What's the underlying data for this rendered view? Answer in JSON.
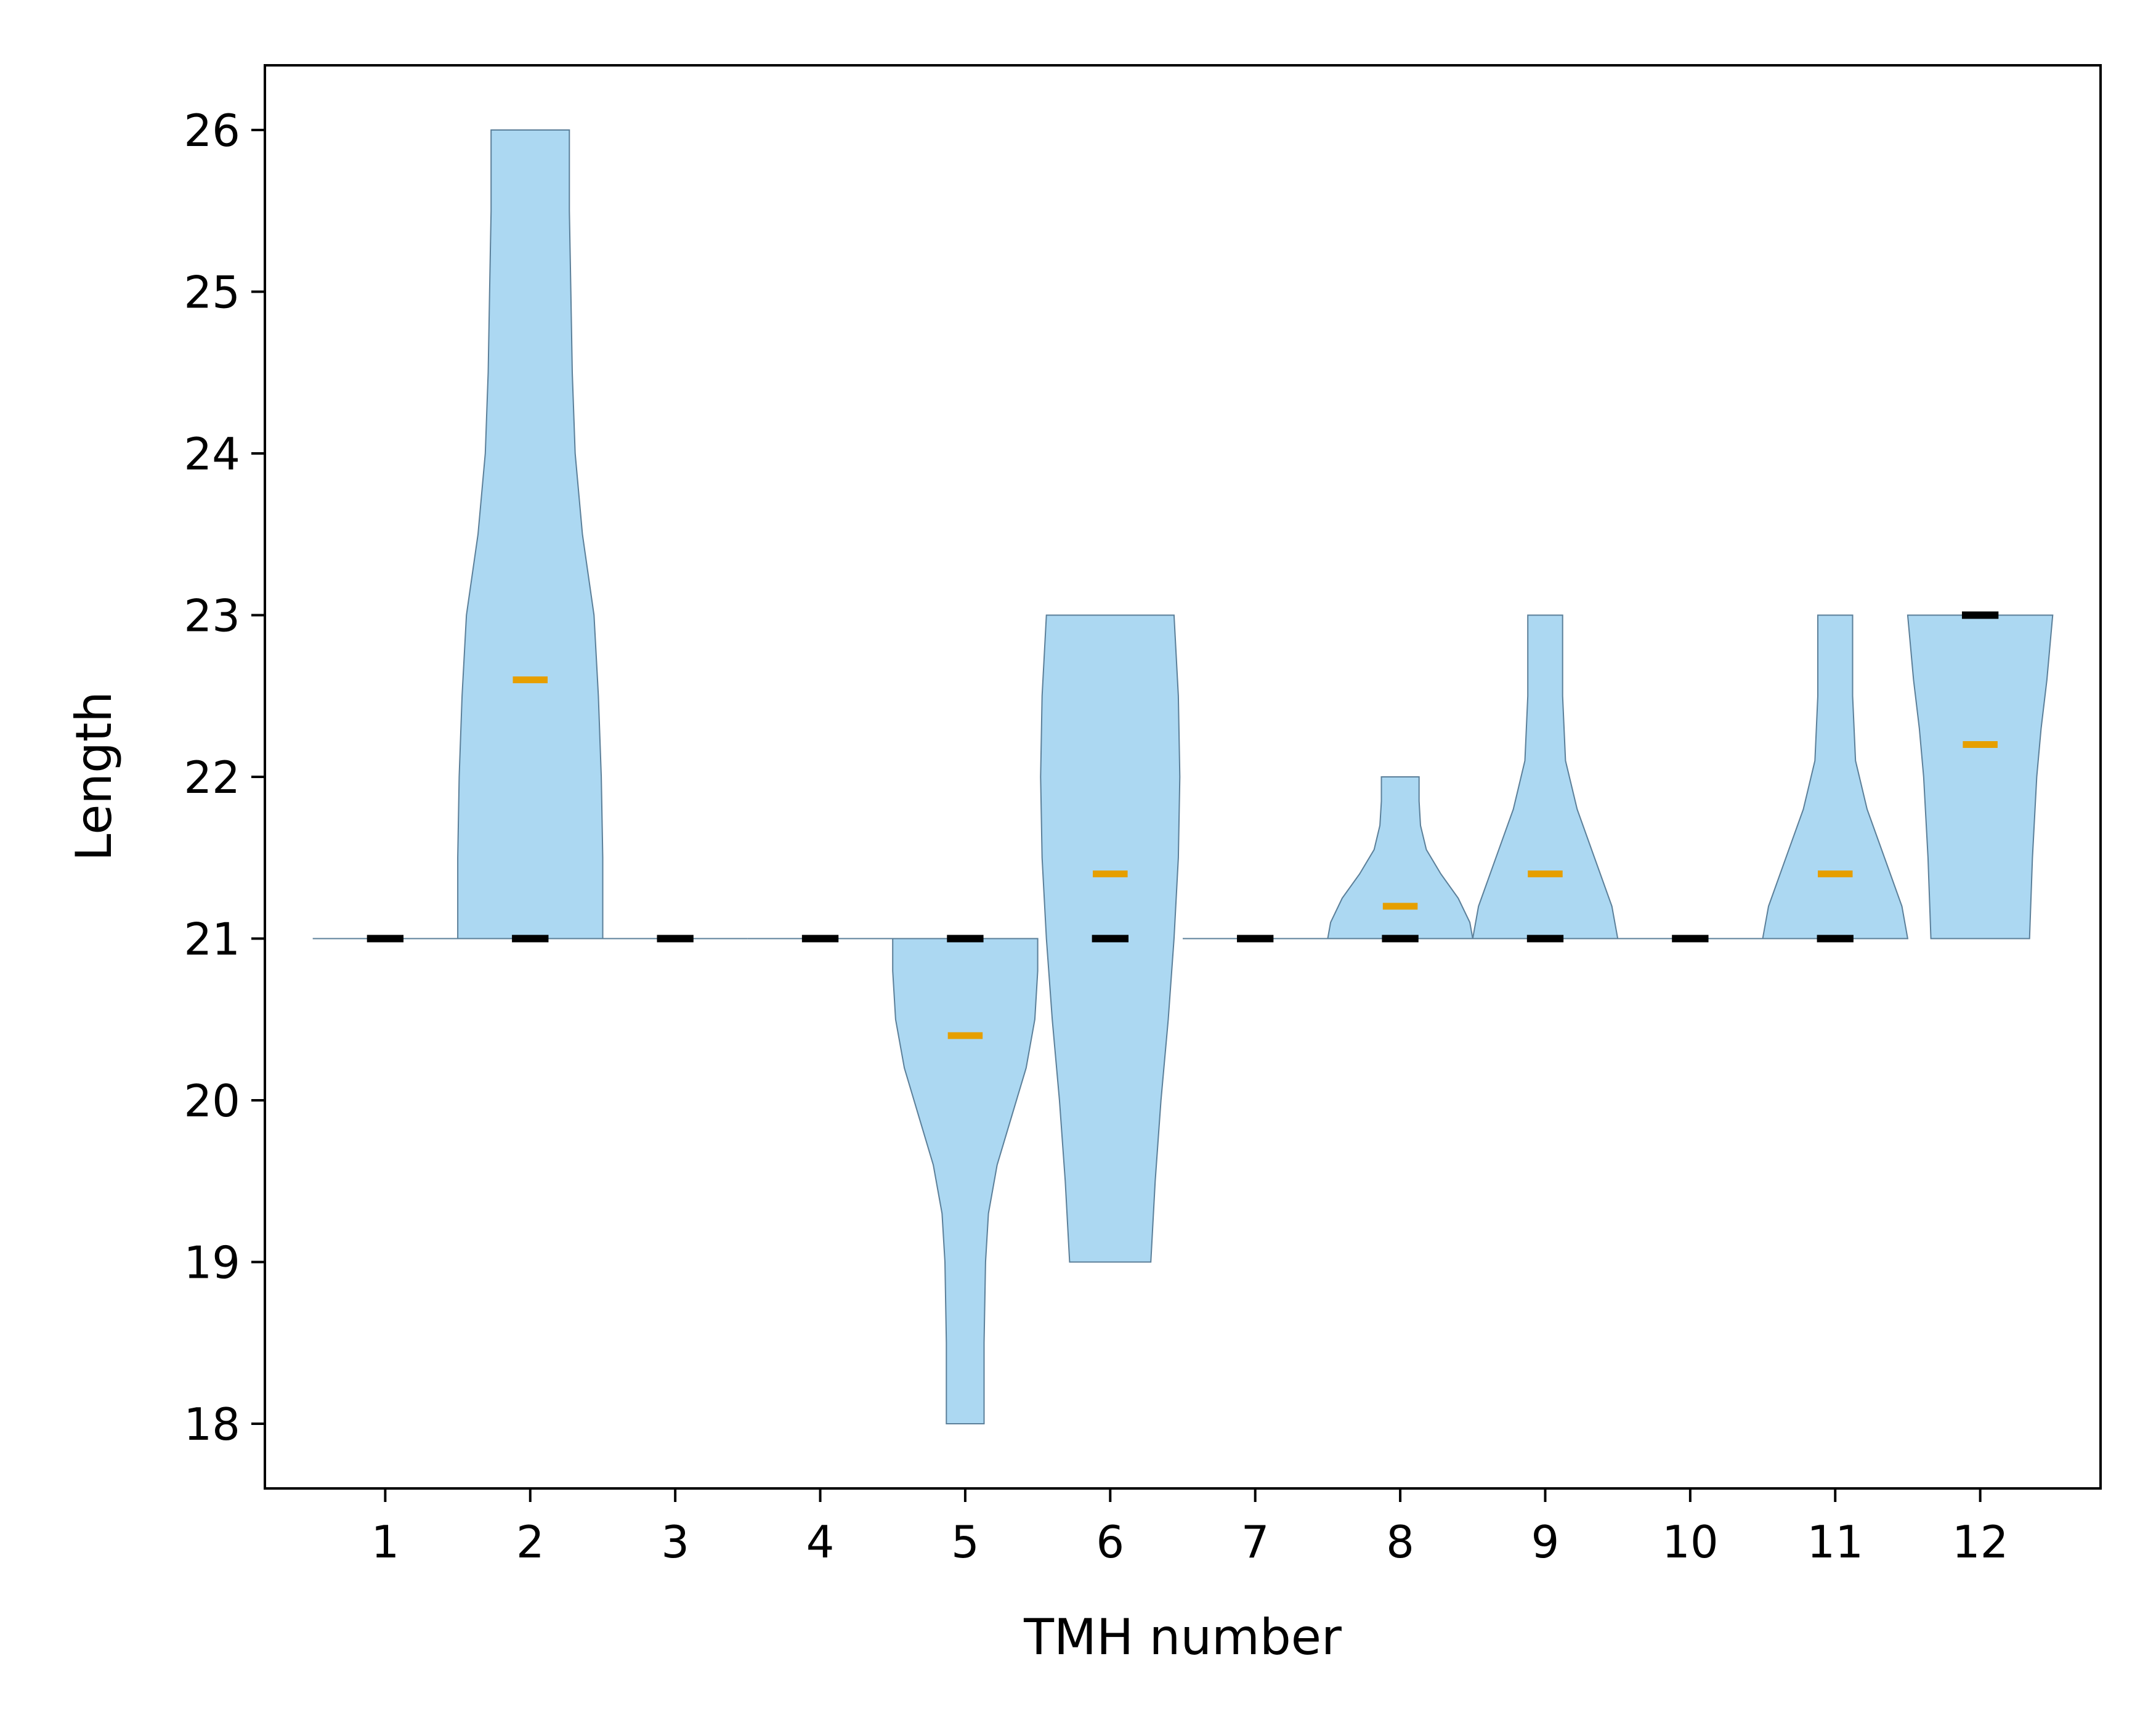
{
  "chart_data": {
    "type": "violin",
    "xlabel": "TMH number",
    "ylabel": "Length",
    "ylim": [
      17.6,
      26.4
    ],
    "yticks": [
      18,
      19,
      20,
      21,
      22,
      23,
      24,
      25,
      26
    ],
    "categories": [
      "1",
      "2",
      "3",
      "4",
      "5",
      "6",
      "7",
      "8",
      "9",
      "10",
      "11",
      "12"
    ],
    "violins": [
      {
        "x": 1,
        "min": 21,
        "max": 21,
        "median": 21,
        "mean": 21.0,
        "profile": []
      },
      {
        "x": 2,
        "min": 21,
        "max": 26,
        "median": 21,
        "mean": 22.6,
        "profile": [
          [
            21,
            0.5
          ],
          [
            21.5,
            0.5
          ],
          [
            22,
            0.49
          ],
          [
            22.5,
            0.47
          ],
          [
            23,
            0.44
          ],
          [
            23.5,
            0.36
          ],
          [
            24,
            0.31
          ],
          [
            24.5,
            0.29
          ],
          [
            25,
            0.28
          ],
          [
            25.5,
            0.27
          ],
          [
            26,
            0.27
          ]
        ]
      },
      {
        "x": 3,
        "min": 21,
        "max": 21,
        "median": 21,
        "mean": 21.0,
        "profile": []
      },
      {
        "x": 4,
        "min": 21,
        "max": 21,
        "median": 21,
        "mean": 21.0,
        "profile": []
      },
      {
        "x": 5,
        "min": 18,
        "max": 21,
        "median": 21,
        "mean": 20.4,
        "profile": [
          [
            18,
            0.13
          ],
          [
            18.5,
            0.13
          ],
          [
            19,
            0.14
          ],
          [
            19.3,
            0.16
          ],
          [
            19.6,
            0.22
          ],
          [
            19.9,
            0.32
          ],
          [
            20.2,
            0.42
          ],
          [
            20.5,
            0.48
          ],
          [
            20.8,
            0.5
          ],
          [
            21,
            0.5
          ]
        ]
      },
      {
        "x": 6,
        "min": 19,
        "max": 23,
        "median": 21,
        "mean": 21.4,
        "profile": [
          [
            19,
            0.28
          ],
          [
            19.5,
            0.31
          ],
          [
            20,
            0.35
          ],
          [
            20.5,
            0.4
          ],
          [
            21,
            0.44
          ],
          [
            21.5,
            0.47
          ],
          [
            22,
            0.48
          ],
          [
            22.5,
            0.47
          ],
          [
            23,
            0.44
          ]
        ]
      },
      {
        "x": 7,
        "min": 21,
        "max": 21,
        "median": 21,
        "mean": 21.0,
        "profile": []
      },
      {
        "x": 8,
        "min": 21,
        "max": 22,
        "median": 21,
        "mean": 21.2,
        "profile": [
          [
            21,
            0.5
          ],
          [
            21.1,
            0.48
          ],
          [
            21.25,
            0.4
          ],
          [
            21.4,
            0.28
          ],
          [
            21.55,
            0.18
          ],
          [
            21.7,
            0.14
          ],
          [
            21.85,
            0.13
          ],
          [
            22,
            0.13
          ]
        ]
      },
      {
        "x": 9,
        "min": 21,
        "max": 23,
        "median": 21,
        "mean": 21.4,
        "profile": [
          [
            21,
            0.5
          ],
          [
            21.2,
            0.46
          ],
          [
            21.5,
            0.34
          ],
          [
            21.8,
            0.22
          ],
          [
            22.1,
            0.14
          ],
          [
            22.5,
            0.12
          ],
          [
            23,
            0.12
          ]
        ]
      },
      {
        "x": 10,
        "min": 21,
        "max": 21,
        "median": 21,
        "mean": 21.0,
        "profile": []
      },
      {
        "x": 11,
        "min": 21,
        "max": 23,
        "median": 21,
        "mean": 21.4,
        "profile": [
          [
            21,
            0.5
          ],
          [
            21.2,
            0.46
          ],
          [
            21.5,
            0.34
          ],
          [
            21.8,
            0.22
          ],
          [
            22.1,
            0.14
          ],
          [
            22.5,
            0.12
          ],
          [
            23,
            0.12
          ]
        ]
      },
      {
        "x": 12,
        "min": 21,
        "max": 23,
        "median": 23,
        "mean": 22.2,
        "profile": [
          [
            21,
            0.34
          ],
          [
            21.5,
            0.36
          ],
          [
            22,
            0.39
          ],
          [
            22.3,
            0.42
          ],
          [
            22.6,
            0.46
          ],
          [
            23,
            0.5
          ]
        ]
      }
    ],
    "colors": {
      "violin_fill": "#acd8f2",
      "violin_edge": "#5b7f99",
      "median": "#000000",
      "mean": "#e69f00"
    }
  }
}
